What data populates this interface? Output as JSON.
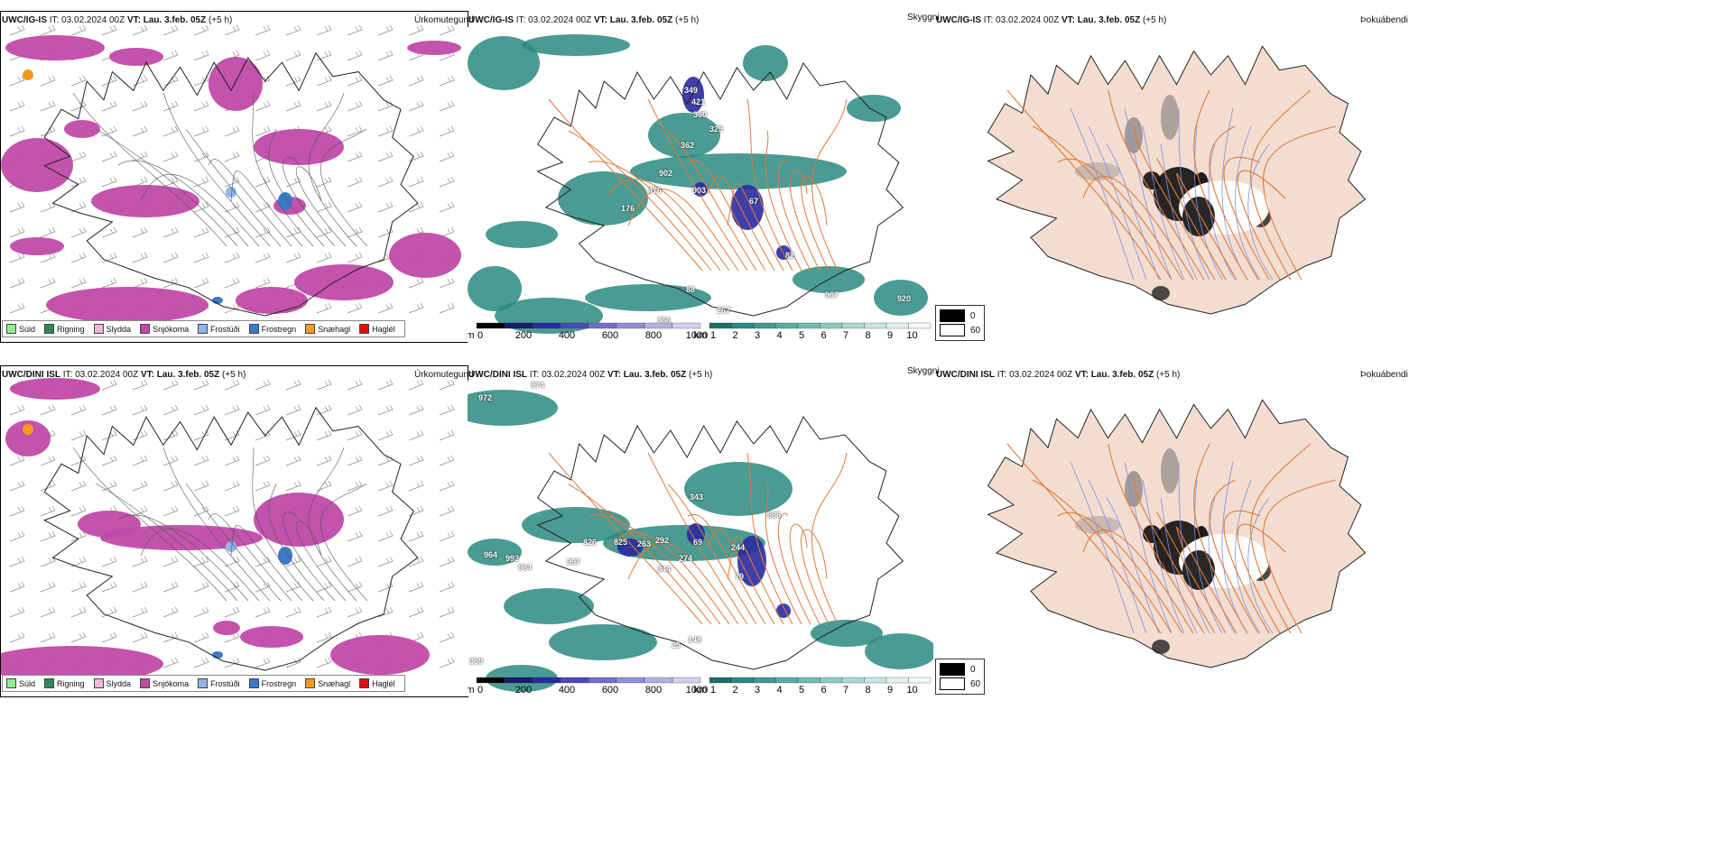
{
  "rows": [
    {
      "precip": {
        "title_bold": "UWC/IG-IS",
        "title_rest": " IT: 03.02.2024 00Z ",
        "vt_bold": "VT: Lau. 3.feb. 05Z",
        "vt_rest": " (+5 h)",
        "param": "Úrkomutegund"
      },
      "cloud": {
        "title_bold": "UWC/IG-IS",
        "title_rest": " IT: 03.02.2024 00Z ",
        "vt_bold": "VT: Lau. 3.feb. 05Z",
        "vt_rest": " (+5 h)",
        "param": "Skyggni",
        "peaks": [
          "349",
          "421",
          "360",
          "325",
          "362",
          "902",
          "476",
          "903",
          "176",
          "67",
          "88",
          "267",
          "967",
          "920",
          "366",
          "82"
        ]
      },
      "fog": {
        "title_bold": "UWC/IG-IS",
        "title_rest": " IT: 03.02.2024 00Z ",
        "vt_bold": "VT: Lau. 3.feb. 05Z",
        "vt_rest": " (+5 h)",
        "param": "Þokuábendi"
      }
    },
    {
      "precip": {
        "title_bold": "UWC/DINI ISL",
        "title_rest": " IT: 03.02.2024 00Z ",
        "vt_bold": "VT: Lau. 3.feb. 05Z",
        "vt_rest": " (+5 h)",
        "param": "Úrkomutegund"
      },
      "cloud": {
        "title_bold": "UWC/DINI ISL",
        "title_rest": " IT: 03.02.2024 00Z ",
        "vt_bold": "VT: Lau. 3.feb. 05Z",
        "vt_rest": " (+5 h)",
        "param": "Skyggni",
        "peaks": [
          "972",
          "974",
          "826",
          "825",
          "263",
          "292",
          "69",
          "244",
          "79",
          "343",
          "986",
          "964",
          "992",
          "984",
          "997",
          "274",
          "344",
          "148",
          "25",
          "369"
        ]
      },
      "fog": {
        "title_bold": "UWC/DINI ISL",
        "title_rest": " IT: 03.02.2024 00Z ",
        "vt_bold": "VT: Lau. 3.feb. 05Z",
        "vt_rest": " (+5 h)",
        "param": "Þokuábendi"
      }
    }
  ],
  "precip_legend": [
    {
      "label": "Súld",
      "color": "#90ee90"
    },
    {
      "label": "Rigning",
      "color": "#2e8b57"
    },
    {
      "label": "Slydda",
      "color": "#f5b6d6"
    },
    {
      "label": "Snjókoma",
      "color": "#c04aa8"
    },
    {
      "label": "Frostúði",
      "color": "#8fb5ef"
    },
    {
      "label": "Frostregn",
      "color": "#3a7ac8"
    },
    {
      "label": "Snæhagl",
      "color": "#f39a1d"
    },
    {
      "label": "Haglél",
      "color": "#e01010"
    }
  ],
  "cloud_scale": {
    "left_unit": "m",
    "left_ticks": [
      "0",
      "200",
      "400",
      "600",
      "800",
      "1000"
    ],
    "right_unit": "km",
    "right_ticks": [
      "1",
      "2",
      "3",
      "4",
      "5",
      "6",
      "7",
      "8",
      "9",
      "10"
    ],
    "cloud_color": "#2a8a80",
    "low_color": "#2a2aa0"
  },
  "fog_legend": [
    {
      "label": "0",
      "color": "#000000"
    },
    {
      "label": "60",
      "color": "#ffffff"
    }
  ],
  "colors": {
    "snow": "#c04aa8",
    "land": "#f3ddd0",
    "roads": "#e07a3a",
    "rivers": "#7c8ff0",
    "outline": "#222222"
  }
}
